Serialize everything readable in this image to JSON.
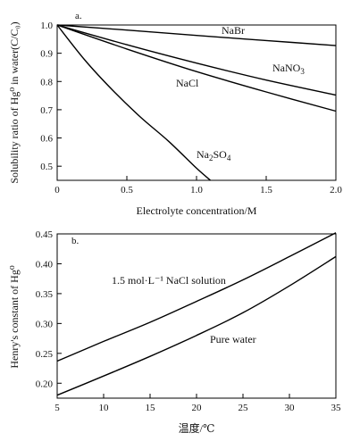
{
  "chart_data": [
    {
      "panel_label": "a.",
      "type": "line",
      "xlabel": "Electrolyte concentration/M",
      "ylabel": "Solubility ratio of Hg⁰ in water(C/C₀)",
      "xlim": [
        0,
        2.0
      ],
      "ylim": [
        0.45,
        1.0
      ],
      "x_ticks": [
        "0",
        "0.5",
        "1.0",
        "1.5",
        "2.0"
      ],
      "y_ticks": [
        "0.5",
        "0.6",
        "0.7",
        "0.8",
        "0.9",
        "1.0"
      ],
      "grid": false,
      "legend": "inline labels",
      "series": [
        {
          "name": "NaBr",
          "x": [
            0,
            0.5,
            1.0,
            1.5,
            2.0
          ],
          "y": [
            1.0,
            0.982,
            0.963,
            0.945,
            0.927
          ]
        },
        {
          "name": "NaNO3",
          "x": [
            0,
            0.5,
            1.0,
            1.5,
            2.0
          ],
          "y": [
            1.0,
            0.93,
            0.865,
            0.805,
            0.752
          ]
        },
        {
          "name": "NaCl",
          "x": [
            0,
            0.5,
            1.0,
            1.5,
            2.0
          ],
          "y": [
            1.0,
            0.915,
            0.835,
            0.763,
            0.695
          ]
        },
        {
          "name": "Na2SO4",
          "x": [
            0,
            0.2,
            0.4,
            0.6,
            0.8,
            1.0,
            1.1
          ],
          "y": [
            1.0,
            0.875,
            0.768,
            0.673,
            0.588,
            0.493,
            0.45
          ]
        }
      ]
    },
    {
      "panel_label": "b.",
      "type": "line",
      "xlabel": "温度/℃",
      "ylabel": "Henry's constant of Hg⁰",
      "xlim": [
        5,
        35
      ],
      "ylim": [
        0.175,
        0.45
      ],
      "x_ticks": [
        "5",
        "10",
        "15",
        "20",
        "25",
        "30",
        "35"
      ],
      "y_ticks": [
        "0.20",
        "0.25",
        "0.30",
        "0.35",
        "0.40",
        "0.45"
      ],
      "grid": false,
      "legend": "inline labels",
      "series": [
        {
          "name": "1.5 mol·L⁻¹ NaCl solution",
          "x": [
            5,
            10,
            15,
            20,
            25,
            30,
            35
          ],
          "y": [
            0.237,
            0.27,
            0.302,
            0.337,
            0.373,
            0.412,
            0.452
          ]
        },
        {
          "name": "Pure water",
          "x": [
            5,
            10,
            15,
            20,
            25,
            30,
            35
          ],
          "y": [
            0.18,
            0.212,
            0.245,
            0.28,
            0.318,
            0.363,
            0.412
          ]
        }
      ]
    }
  ]
}
